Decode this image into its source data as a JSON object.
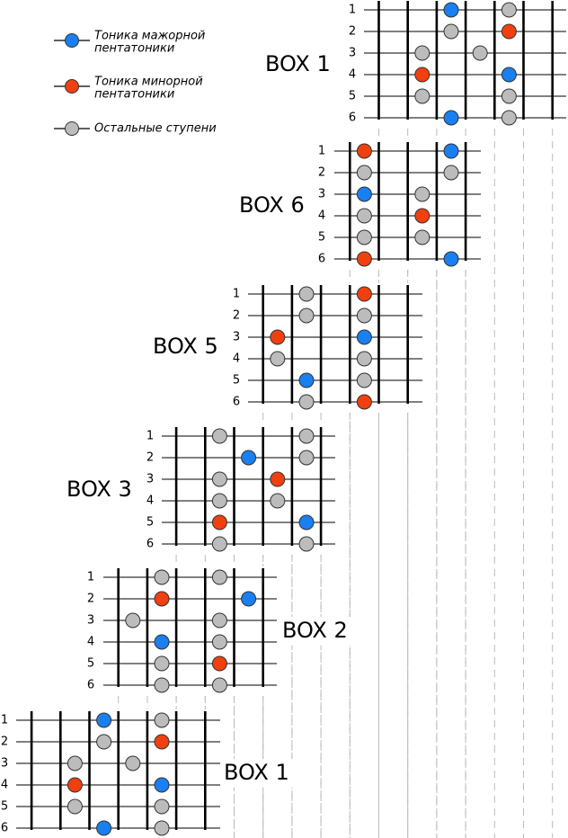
{
  "legend": [
    {
      "lines": [
        "Тоника мажорной",
        "пентатоники"
      ]
    },
    {
      "lines": [
        "Тоника минорной",
        "пентатоники"
      ]
    },
    {
      "lines": [
        "Остальные ступени"
      ]
    }
  ],
  "boxes": [
    {
      "label": "BOX 1",
      "strings": [
        1,
        2,
        3,
        4,
        5,
        6
      ]
    },
    {
      "label": "BOX 6",
      "strings": [
        1,
        2,
        3,
        4,
        5,
        6
      ]
    },
    {
      "label": "BOX 5",
      "strings": [
        1,
        2,
        3,
        4,
        5,
        6
      ]
    },
    {
      "label": "BOX 3",
      "strings": [
        1,
        2,
        3,
        4,
        5,
        6
      ]
    },
    {
      "label": "BOX 2",
      "strings": [
        1,
        2,
        3,
        4,
        5,
        6
      ]
    },
    {
      "label": "BOX 1",
      "strings": [
        1,
        2,
        3,
        4,
        5,
        6
      ]
    }
  ]
}
